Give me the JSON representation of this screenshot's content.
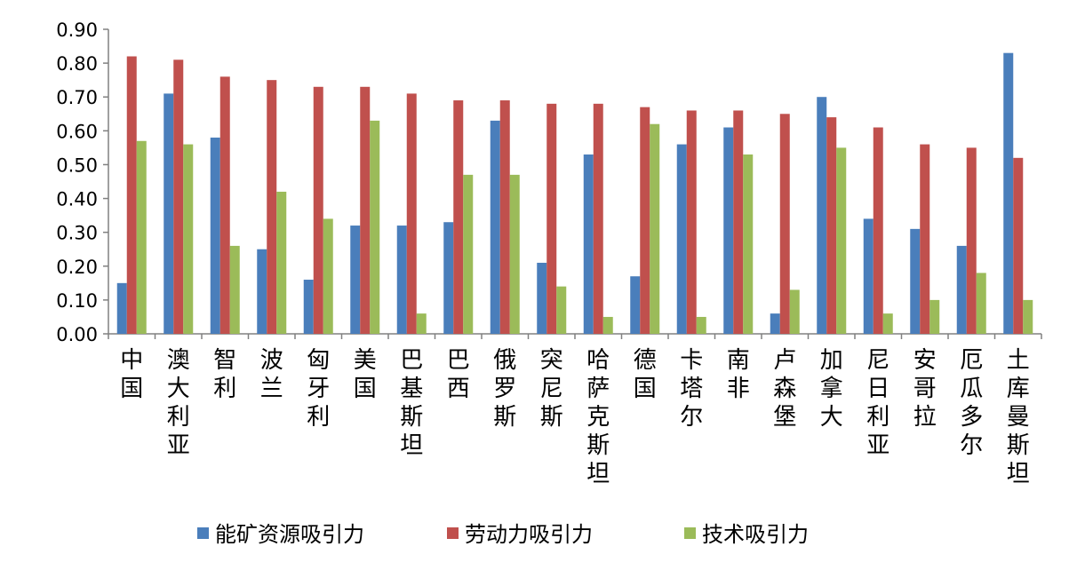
{
  "chart_data": {
    "type": "bar",
    "title": "",
    "xlabel": "",
    "ylabel": "",
    "ylim": [
      0,
      0.9
    ],
    "yticks": [
      "0.00",
      "0.10",
      "0.20",
      "0.30",
      "0.40",
      "0.50",
      "0.60",
      "0.70",
      "0.80",
      "0.90"
    ],
    "grid": false,
    "legend_position": "bottom",
    "categories": [
      "中国",
      "澳大利亚",
      "智利",
      "波兰",
      "匈牙利",
      "美国",
      "巴基斯坦",
      "巴西",
      "俄罗斯",
      "突尼斯",
      "哈萨克斯坦",
      "德国",
      "卡塔尔",
      "南非",
      "卢森堡",
      "加拿大",
      "尼日利亚",
      "安哥拉",
      "厄瓜多尔",
      "土库曼斯坦"
    ],
    "series": [
      {
        "name": "能矿资源吸引力",
        "color": "#4a7ebb",
        "values": [
          0.15,
          0.71,
          0.58,
          0.25,
          0.16,
          0.32,
          0.32,
          0.33,
          0.63,
          0.21,
          0.53,
          0.17,
          0.56,
          0.61,
          0.06,
          0.7,
          0.34,
          0.31,
          0.26,
          0.83
        ]
      },
      {
        "name": "劳动力吸引力",
        "color": "#c0504d",
        "values": [
          0.82,
          0.81,
          0.76,
          0.75,
          0.73,
          0.73,
          0.71,
          0.69,
          0.69,
          0.68,
          0.68,
          0.67,
          0.66,
          0.66,
          0.65,
          0.64,
          0.61,
          0.56,
          0.55,
          0.52
        ]
      },
      {
        "name": "技术吸引力",
        "color": "#9bbb59",
        "values": [
          0.57,
          0.56,
          0.26,
          0.42,
          0.34,
          0.63,
          0.06,
          0.47,
          0.47,
          0.14,
          0.05,
          0.62,
          0.05,
          0.53,
          0.13,
          0.55,
          0.06,
          0.1,
          0.18,
          0.1
        ]
      }
    ]
  }
}
